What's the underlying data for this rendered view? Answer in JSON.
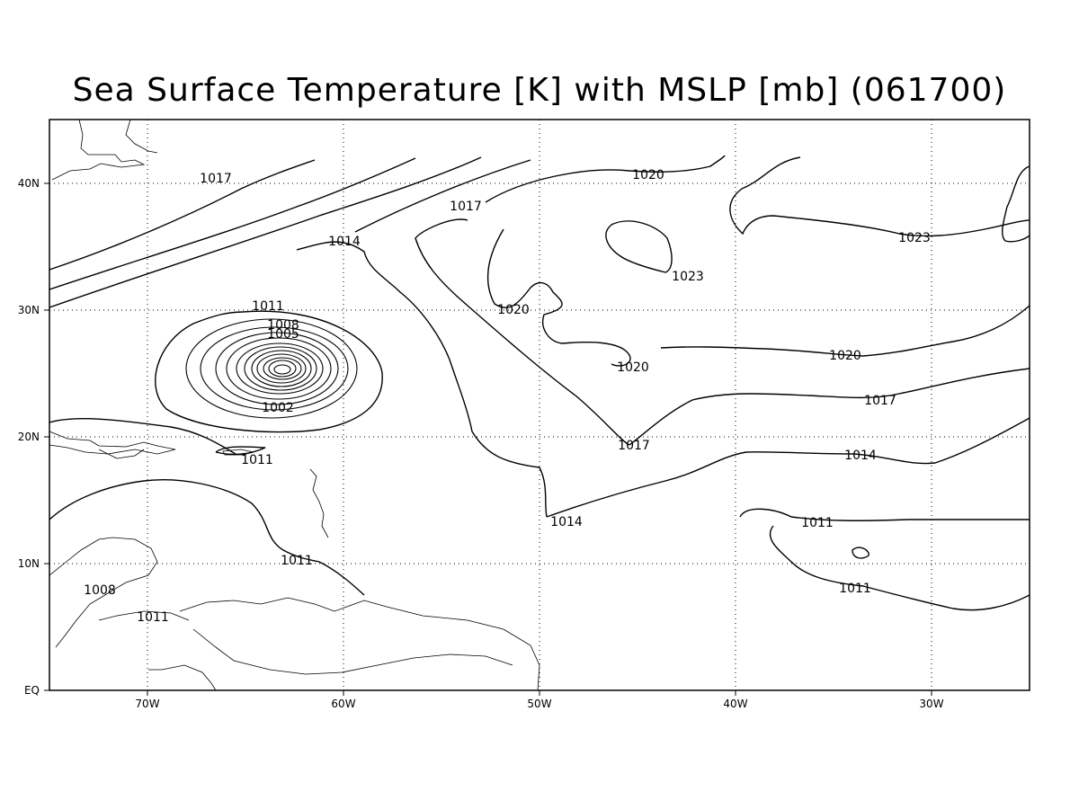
{
  "title": "Sea Surface Temperature [K] with MSLP [mb] (061700)",
  "map": {
    "lon_range": [
      -75,
      -25
    ],
    "lat_range": [
      0,
      45
    ],
    "grid": "dotted",
    "lon_ticks": [
      "70W",
      "60W",
      "50W",
      "40W",
      "30W"
    ],
    "lat_ticks": [
      "EQ",
      "10N",
      "20N",
      "30N",
      "40N"
    ],
    "contour_labels": [
      "1017",
      "1014",
      "1011",
      "1008",
      "1005",
      "1002",
      "1017",
      "1020",
      "1020",
      "1023",
      "1023",
      "1020",
      "1017",
      "1017",
      "1014",
      "1014",
      "1011",
      "1011",
      "1011",
      "1008",
      "1011",
      "1011",
      "1020"
    ]
  }
}
